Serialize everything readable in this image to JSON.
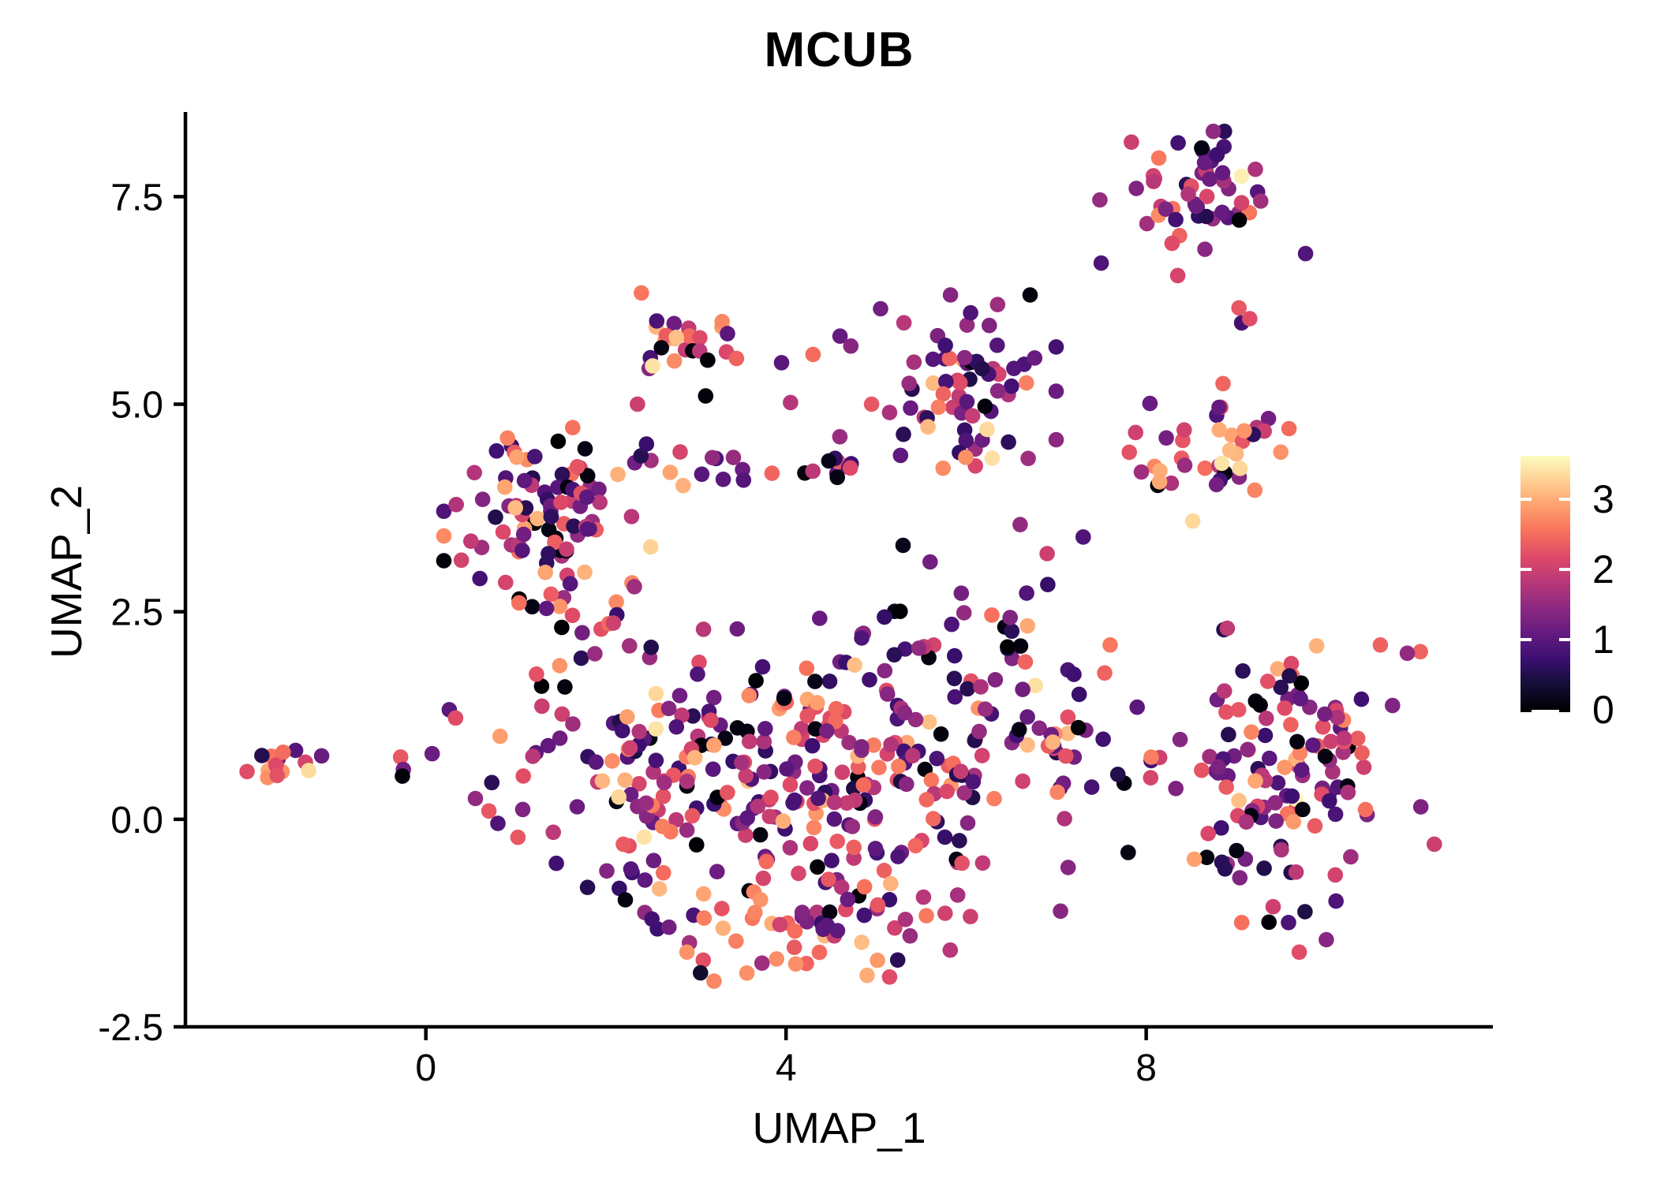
{
  "title": "MCUB",
  "axes": {
    "x_label": "UMAP_1",
    "y_label": "UMAP_2",
    "x_ticks": [
      {
        "value": 0,
        "label": "0"
      },
      {
        "value": 4,
        "label": "4"
      },
      {
        "value": 8,
        "label": "8"
      }
    ],
    "y_ticks": [
      {
        "value": 7.5,
        "label": "7.5"
      },
      {
        "value": 5.0,
        "label": "5.0"
      },
      {
        "value": 2.5,
        "label": "2.5"
      },
      {
        "value": 0.0,
        "label": "0.0"
      },
      {
        "value": -2.5,
        "label": "-2.5"
      }
    ],
    "xlim": [
      -2.67,
      11.85
    ],
    "ylim": [
      -2.5,
      8.52
    ]
  },
  "colorbar": {
    "vmin": 0,
    "vmax": 3.62,
    "ticks": [
      {
        "value": 0,
        "label": "0"
      },
      {
        "value": 1,
        "label": "1"
      },
      {
        "value": 2,
        "label": "2"
      },
      {
        "value": 3,
        "label": "3"
      }
    ],
    "gradient_stops": [
      [
        0.0,
        "#000004"
      ],
      [
        0.1,
        "#140e36"
      ],
      [
        0.2,
        "#3b0f70"
      ],
      [
        0.3,
        "#641a80"
      ],
      [
        0.4,
        "#8c2981"
      ],
      [
        0.5,
        "#b73779"
      ],
      [
        0.6,
        "#de4968"
      ],
      [
        0.7,
        "#f7705c"
      ],
      [
        0.8,
        "#fe9f6d"
      ],
      [
        0.9,
        "#fecf92"
      ],
      [
        1.0,
        "#fcfdbf"
      ]
    ]
  },
  "chart_data": {
    "type": "scatter",
    "title": "MCUB",
    "xlabel": "UMAP_1",
    "ylabel": "UMAP_2",
    "xlim": [
      -2.67,
      11.85
    ],
    "ylim": [
      -2.5,
      8.52
    ],
    "grid": false,
    "legend_position": "right",
    "color_scale": {
      "name": "magma",
      "domain": [
        0,
        3.62
      ]
    },
    "point_radius_px": 9.8,
    "value_bins": [
      [
        0.0,
        0.15
      ],
      [
        0.45,
        1.05
      ],
      [
        1.05,
        1.7
      ],
      [
        1.7,
        2.3
      ],
      [
        2.3,
        2.75
      ],
      [
        2.75,
        3.15
      ],
      [
        3.2,
        3.55
      ]
    ],
    "value_mixes": {
      "default": [
        0.09,
        0.26,
        0.24,
        0.2,
        0.12,
        0.08,
        0.01
      ],
      "warm": [
        0.05,
        0.12,
        0.14,
        0.19,
        0.21,
        0.22,
        0.07
      ],
      "dark": [
        0.1,
        0.33,
        0.27,
        0.16,
        0.09,
        0.05,
        0.0
      ]
    },
    "clusters": [
      {
        "name": "far-left-island",
        "cx": -1.5,
        "cy": 0.68,
        "sx": 0.22,
        "sy": 0.11,
        "n": 14,
        "mix": "warm",
        "seed": 11
      },
      {
        "name": "top-right",
        "cx": 8.62,
        "cy": 7.55,
        "sx": 0.5,
        "sy": 0.32,
        "n": 54,
        "mix": "default",
        "seed": 21
      },
      {
        "name": "upper-mid",
        "cx": 2.8,
        "cy": 5.72,
        "sx": 0.26,
        "sy": 0.27,
        "n": 24,
        "mix": "warm",
        "seed": 31
      },
      {
        "name": "mid-top",
        "cx": 6.08,
        "cy": 5.35,
        "sx": 0.4,
        "sy": 0.42,
        "n": 55,
        "mix": "dark",
        "seed": 41
      },
      {
        "name": "mid-top-lower",
        "cx": 6.0,
        "cy": 4.3,
        "sx": 0.3,
        "sy": 0.25,
        "n": 10,
        "mix": "warm",
        "seed": 43
      },
      {
        "name": "right-mid",
        "cx": 8.62,
        "cy": 4.42,
        "sx": 0.42,
        "sy": 0.36,
        "n": 40,
        "mix": "warm",
        "seed": 51
      },
      {
        "name": "left-big",
        "cx": 1.35,
        "cy": 3.6,
        "sx": 0.5,
        "sy": 0.55,
        "n": 90,
        "mix": "default",
        "seed": 61
      },
      {
        "name": "left-arm",
        "cx": 1.8,
        "cy": 2.2,
        "sx": 0.35,
        "sy": 0.4,
        "n": 22,
        "mix": "default",
        "seed": 63
      },
      {
        "name": "left-low",
        "cx": 1.2,
        "cy": 0.5,
        "sx": 0.3,
        "sy": 0.45,
        "n": 12,
        "mix": "default",
        "seed": 65
      },
      {
        "name": "bridge-band",
        "cx": 3.3,
        "cy": 4.3,
        "sx": 0.55,
        "sy": 0.2,
        "n": 14,
        "mix": "default",
        "seed": 71
      },
      {
        "name": "bridge-blob",
        "cx": 4.45,
        "cy": 4.3,
        "sx": 0.22,
        "sy": 0.16,
        "n": 10,
        "mix": "dark",
        "seed": 73
      },
      {
        "name": "central",
        "cx": 4.6,
        "cy": 0.55,
        "sx": 1.1,
        "sy": 0.85,
        "n": 260,
        "mix": "default",
        "seed": 81
      },
      {
        "name": "central-bottom",
        "cx": 4.4,
        "cy": -1.35,
        "sx": 0.7,
        "sy": 0.28,
        "n": 40,
        "mix": "warm",
        "seed": 83
      },
      {
        "name": "central-left",
        "cx": 2.35,
        "cy": 0.3,
        "sx": 0.45,
        "sy": 0.7,
        "n": 55,
        "mix": "default",
        "seed": 85
      },
      {
        "name": "central-top",
        "cx": 6.35,
        "cy": 2.15,
        "sx": 0.38,
        "sy": 0.3,
        "n": 22,
        "mix": "dark",
        "seed": 87
      },
      {
        "name": "central-right",
        "cx": 6.95,
        "cy": 0.8,
        "sx": 0.35,
        "sy": 0.6,
        "n": 30,
        "mix": "default",
        "seed": 89
      },
      {
        "name": "right-lower",
        "cx": 9.55,
        "cy": 0.55,
        "sx": 0.65,
        "sy": 0.78,
        "n": 130,
        "mix": "default",
        "seed": 91
      }
    ],
    "singles": [
      [
        -0.28,
        0.75,
        2.3
      ],
      [
        -0.25,
        0.6,
        1.2
      ],
      [
        -0.26,
        0.52,
        0.05
      ],
      [
        0.07,
        0.79,
        1.15
      ],
      [
        7.5,
        6.7,
        0.9
      ],
      [
        8.35,
        6.55,
        2.1
      ],
      [
        9.03,
        6.16,
        2.3
      ],
      [
        9.06,
        5.98,
        0.8
      ],
      [
        9.15,
        6.03,
        2.2
      ],
      [
        3.35,
        5.85,
        1.0
      ],
      [
        3.45,
        5.55,
        2.4
      ],
      [
        4.05,
        5.02,
        1.8
      ],
      [
        2.45,
        4.52,
        0.7
      ],
      [
        4.6,
        5.82,
        1.1
      ],
      [
        4.72,
        5.7,
        1.4
      ],
      [
        4.3,
        5.6,
        2.5
      ],
      [
        3.95,
        5.5,
        1.0
      ],
      [
        5.05,
        6.15,
        1.2
      ],
      [
        6.05,
        6.1,
        0.9
      ],
      [
        6.35,
        6.2,
        1.6
      ],
      [
        4.95,
        5.0,
        2.3
      ],
      [
        5.15,
        4.9,
        1.7
      ],
      [
        2.35,
        5.0,
        2.0
      ],
      [
        5.3,
        3.3,
        0.15
      ],
      [
        5.6,
        3.1,
        1.2
      ],
      [
        6.9,
        3.2,
        2.0
      ],
      [
        7.3,
        3.4,
        0.9
      ],
      [
        6.6,
        3.55,
        1.5
      ],
      [
        0.26,
        1.32,
        1.0
      ],
      [
        0.33,
        1.22,
        2.2
      ],
      [
        0.5,
        3.35,
        1.9
      ],
      [
        0.6,
        2.9,
        0.8
      ],
      [
        0.55,
        0.25,
        1.5
      ],
      [
        0.8,
        -0.05,
        0.9
      ],
      [
        0.7,
        0.1,
        2.3
      ],
      [
        2.7,
        -1.3,
        1.2
      ],
      [
        2.9,
        -1.6,
        2.8
      ],
      [
        3.05,
        -1.85,
        0.3
      ],
      [
        3.2,
        -1.95,
        2.7
      ],
      [
        4.9,
        -1.88,
        3.0
      ],
      [
        5.15,
        -1.9,
        2.2
      ],
      [
        7.9,
        1.35,
        1.0
      ],
      [
        8.05,
        0.5,
        2.1
      ],
      [
        7.8,
        -0.4,
        0.1
      ],
      [
        8.9,
        2.3,
        1.9
      ],
      [
        7.6,
        2.1,
        2.6
      ],
      [
        9.7,
        -1.6,
        2.2
      ],
      [
        10.0,
        -1.45,
        1.4
      ],
      [
        11.2,
        -0.3,
        2.0
      ],
      [
        11.05,
        0.15,
        1.3
      ],
      [
        10.9,
        2.0,
        1.5
      ],
      [
        10.6,
        2.1,
        2.4
      ]
    ]
  }
}
